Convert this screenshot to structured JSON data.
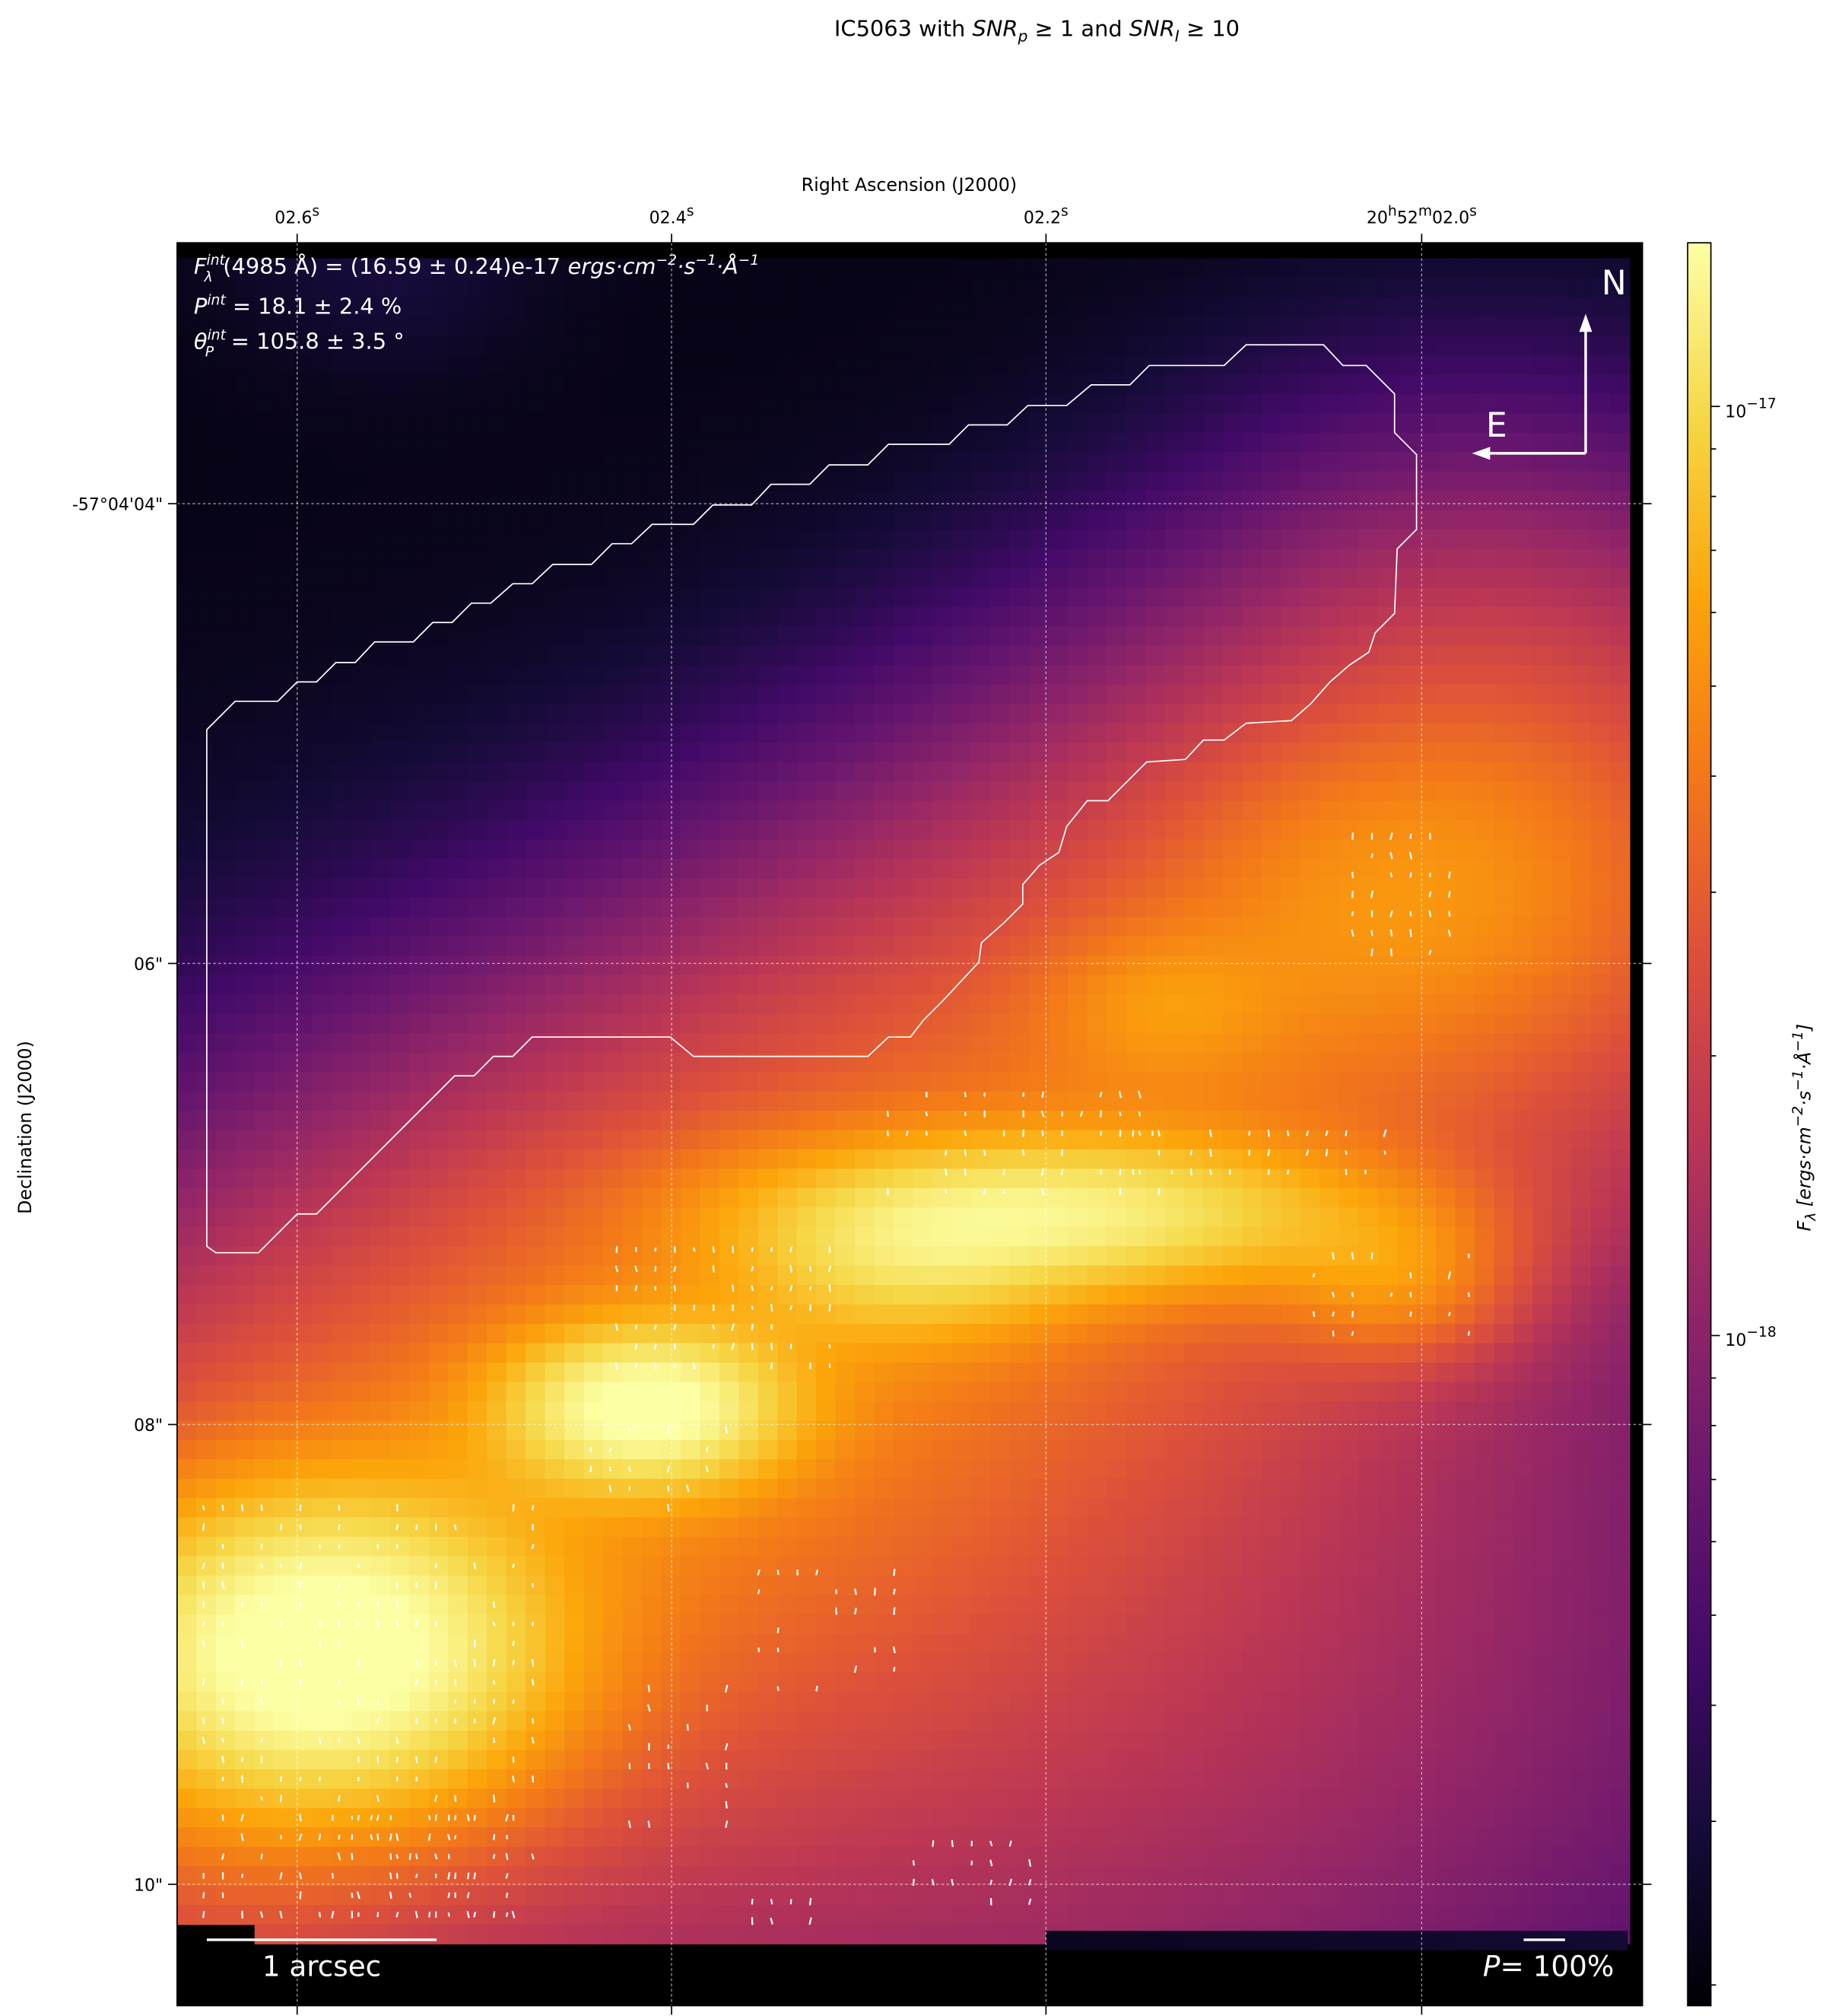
{
  "chart_data": {
    "type": "heatmap",
    "title": {
      "prefix": "IC5063 with ",
      "snr_p": "SNR",
      "snr_p_sub": "p",
      "mid": "≥ 1 and ",
      "snr_i": "SNR",
      "snr_i_sub": "I",
      "suffix": "≥ 10"
    },
    "xlabel": "Right Ascension (J2000)",
    "ylabel": "Declination (J2000)",
    "x_ticks": [
      {
        "label": "02.6",
        "sup": "s"
      },
      {
        "label": "02.4",
        "sup": "s"
      },
      {
        "label": "02.2",
        "sup": "s"
      },
      {
        "label": "20",
        "sup": "h",
        "label2": "52",
        "sup2": "m",
        "label3": "02.0",
        "sup3": "s"
      }
    ],
    "y_ticks": [
      "-57°04'04\"",
      "06\"",
      "08\"",
      "10\""
    ],
    "grid": true,
    "colormap": "inferno",
    "colorbar": {
      "scale": "log",
      "range": [
        1.9e-19,
        1.5e-17
      ],
      "ticks": [
        {
          "base": "10",
          "exp": "−17"
        },
        {
          "base": "10",
          "exp": "−18"
        }
      ],
      "label": "F_λ [ergs·cm^−2·s^−1·Å^−1]",
      "label_main": "F",
      "label_sub": "λ",
      "label_units": " [ergs·cm",
      "label_u1": "−2",
      "label_u2": "·s",
      "label_u3": "−1",
      "label_u4": "·Å",
      "label_u5": "−1",
      "label_end": "]"
    },
    "annotations": {
      "flux": {
        "f": "F",
        "sup": "int",
        "sub": "λ",
        "text": "(4985 Å) = (16.59 ± 0.24)e-17 ",
        "units": "ergs·cm",
        "u1": "−2",
        "u2": "·s",
        "u3": "−1",
        "u4": "·Å",
        "u5": "−1"
      },
      "pol": {
        "p": "P",
        "sup": "int",
        "text": " = 18.1 ± 2.4 %"
      },
      "angle": {
        "t": "θ",
        "sup": "int",
        "sub": "P",
        "text": " = 105.8 ± 3.5 °"
      }
    },
    "compass": {
      "north": "N",
      "east": "E"
    },
    "scalebar": {
      "label": "1 arcsec"
    },
    "pol_scale": {
      "p": "P",
      "text": "= 100%"
    },
    "colors": {
      "vectors": "#ffffff",
      "contour": "#ffffff",
      "background": "#000000"
    }
  }
}
